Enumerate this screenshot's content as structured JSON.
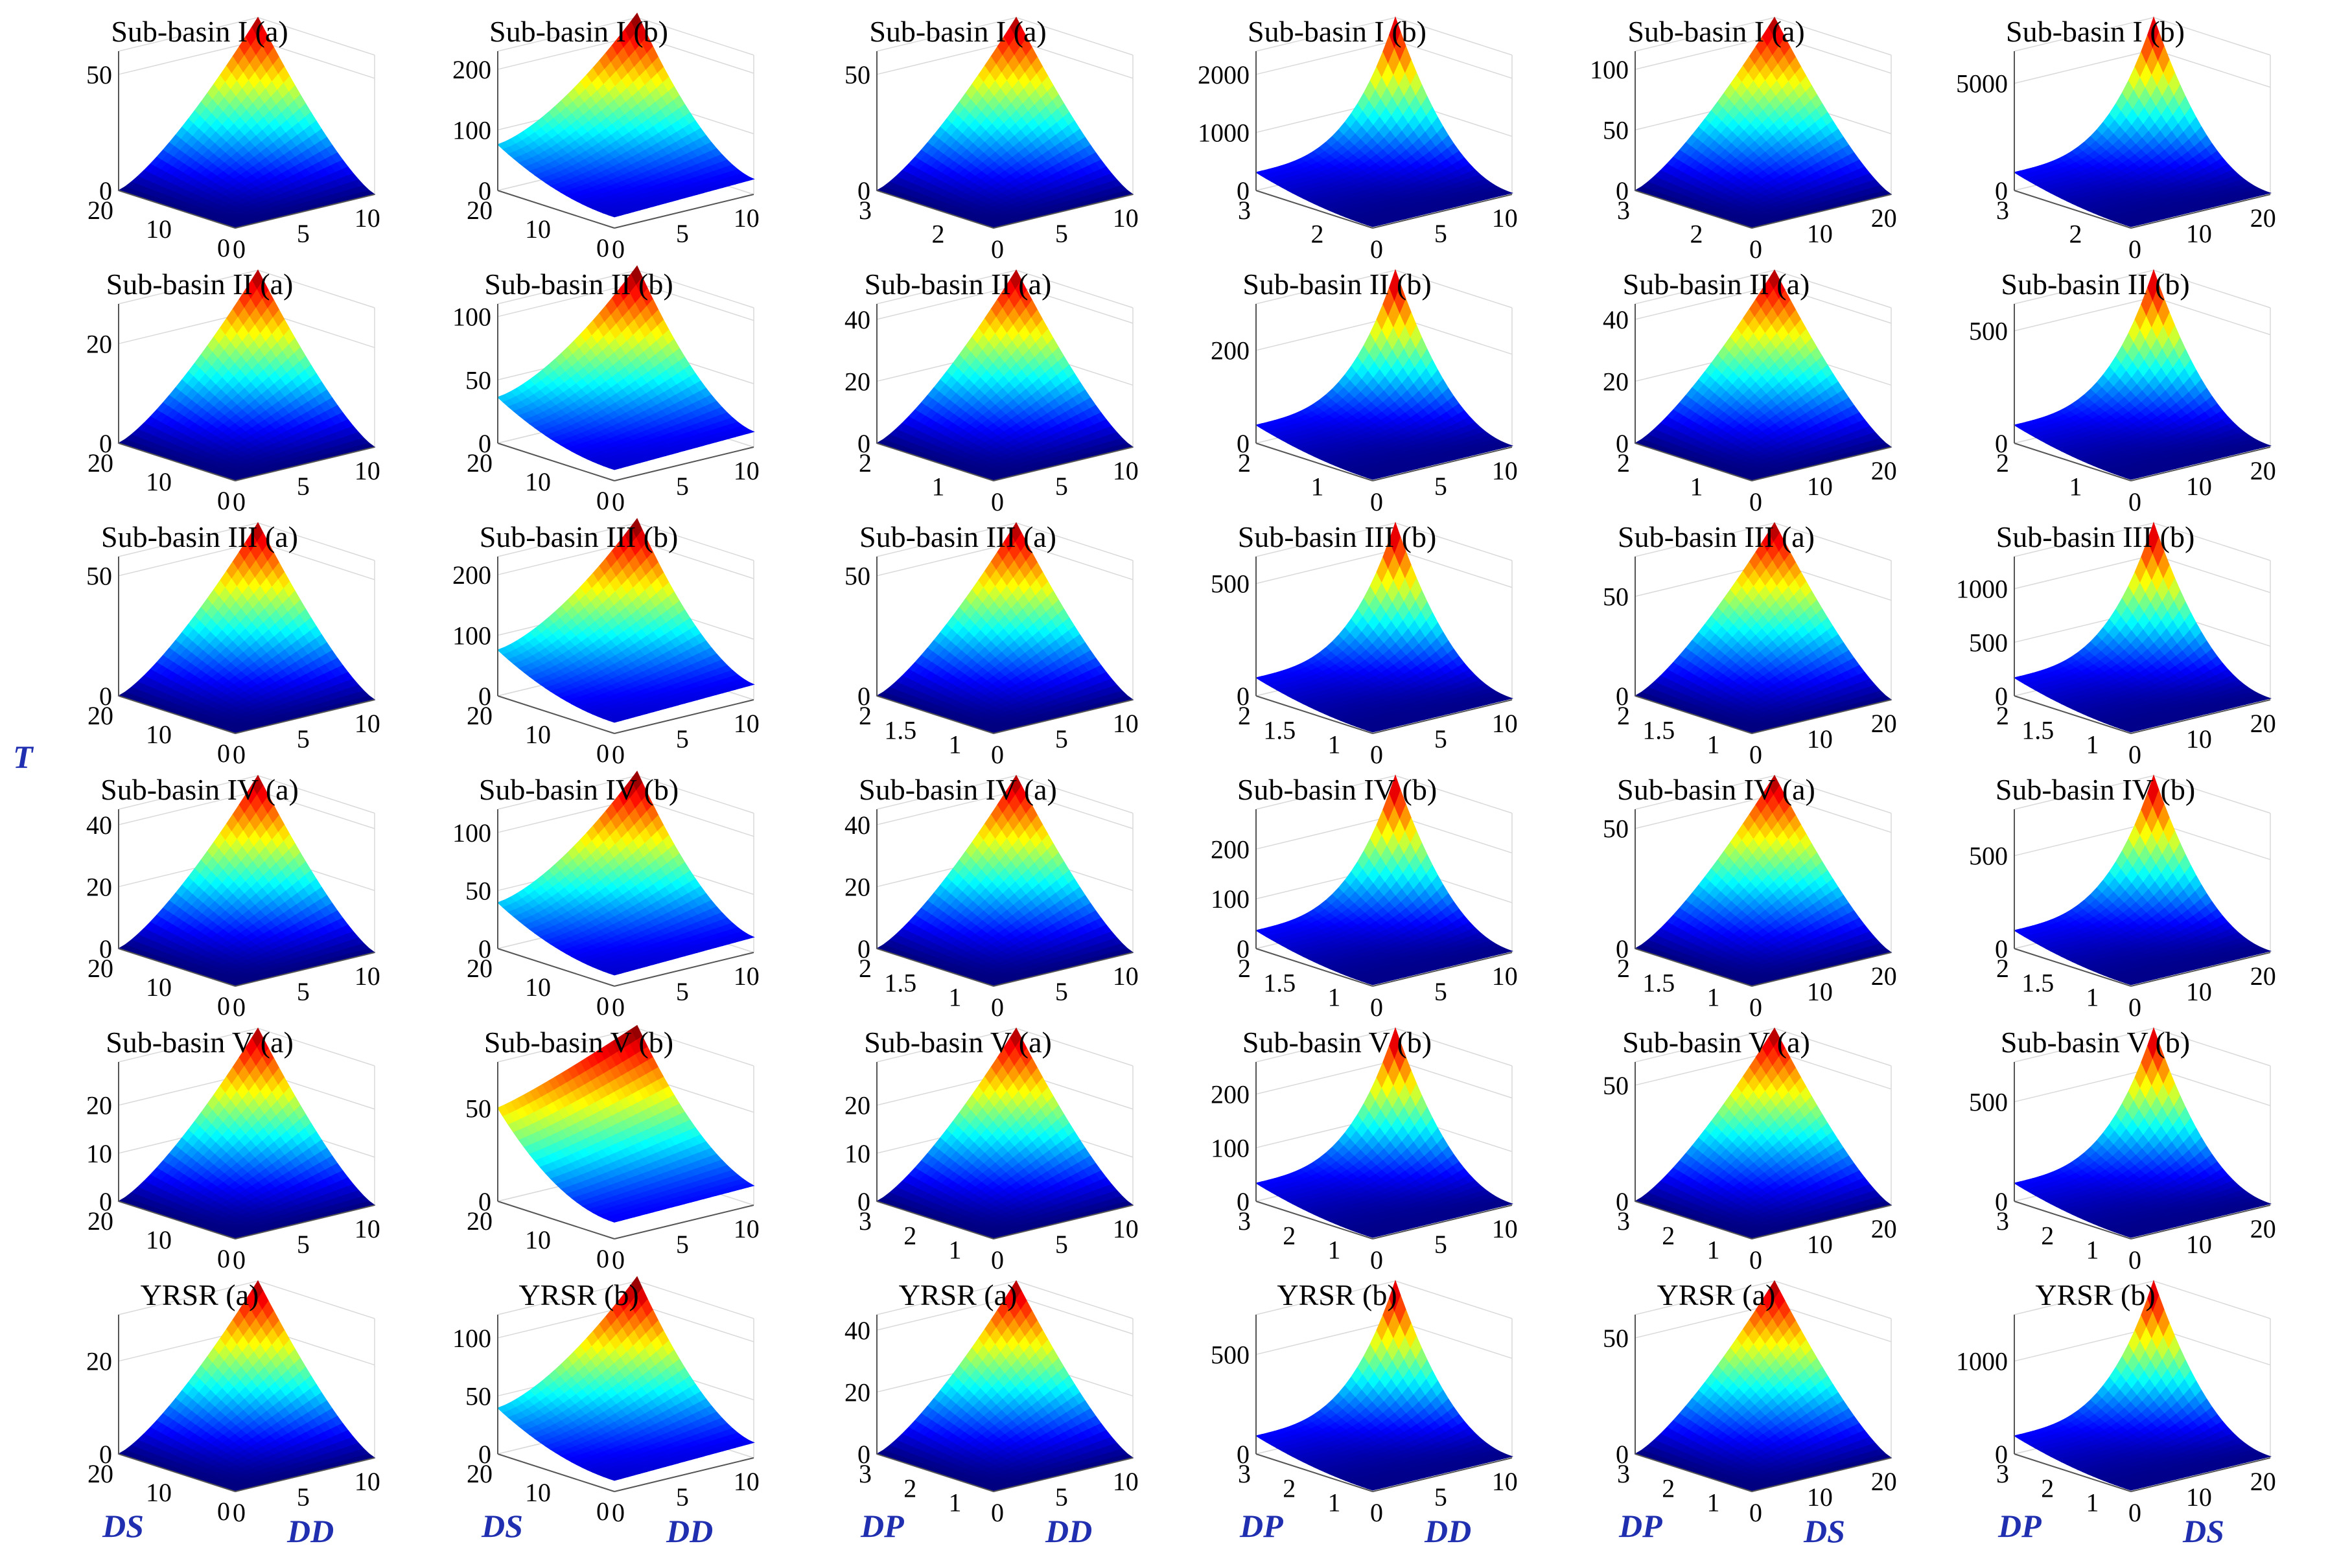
{
  "chart_data": {
    "type": "surface3d",
    "colormap": "jet",
    "global_labels": {
      "z_label": "T"
    },
    "column_labels": [
      {
        "y": "DS",
        "x": "DD"
      },
      {
        "y": "DS",
        "x": "DD"
      },
      {
        "y": "DP",
        "x": "DD"
      },
      {
        "y": "DP",
        "x": "DD"
      },
      {
        "y": "DP",
        "x": "DS"
      },
      {
        "y": "DP",
        "x": "DS"
      }
    ],
    "panels": [
      [
        {
          "title": "Sub-basin I (a)",
          "zticks": [
            0,
            50
          ],
          "zmax": 60,
          "yticks": [
            "20",
            "10",
            "0"
          ],
          "xticks": [
            "0",
            "5",
            "10"
          ],
          "ymax": 20,
          "xmax": 10,
          "shape": "a"
        },
        {
          "title": "Sub-basin I (b)",
          "zticks": [
            0,
            100,
            200
          ],
          "zmax": 230,
          "yticks": [
            "20",
            "10",
            "0"
          ],
          "xticks": [
            "0",
            "5",
            "10"
          ],
          "ymax": 20,
          "xmax": 10,
          "shape": "b"
        },
        {
          "title": "Sub-basin I (a)",
          "zticks": [
            0,
            50
          ],
          "zmax": 60,
          "yticks": [
            "3",
            "2"
          ],
          "xticks": [
            "0",
            "5",
            "10"
          ],
          "ymax": 3,
          "xmax": 10,
          "shape": "a"
        },
        {
          "title": "Sub-basin I (b)",
          "zticks": [
            0,
            1000,
            2000
          ],
          "zmax": 2400,
          "yticks": [
            "3",
            "2"
          ],
          "xticks": [
            "0",
            "5",
            "10"
          ],
          "ymax": 3,
          "xmax": 10,
          "shape": "c"
        },
        {
          "title": "Sub-basin I (a)",
          "zticks": [
            0,
            50,
            100
          ],
          "zmax": 115,
          "yticks": [
            "3",
            "2"
          ],
          "xticks": [
            "0",
            "10",
            "20"
          ],
          "ymax": 3,
          "xmax": 20,
          "shape": "a"
        },
        {
          "title": "Sub-basin I (b)",
          "zticks": [
            0,
            5000
          ],
          "zmax": 6500,
          "yticks": [
            "3",
            "2"
          ],
          "xticks": [
            "0",
            "10",
            "20"
          ],
          "ymax": 3,
          "xmax": 20,
          "shape": "c"
        }
      ],
      [
        {
          "title": "Sub-basin II (a)",
          "zticks": [
            0,
            20
          ],
          "zmax": 28,
          "yticks": [
            "20",
            "10",
            "0"
          ],
          "xticks": [
            "0",
            "5",
            "10"
          ],
          "ymax": 20,
          "xmax": 10,
          "shape": "a"
        },
        {
          "title": "Sub-basin II (b)",
          "zticks": [
            0,
            50,
            100
          ],
          "zmax": 110,
          "yticks": [
            "20",
            "10",
            "0"
          ],
          "xticks": [
            "0",
            "5",
            "10"
          ],
          "ymax": 20,
          "xmax": 10,
          "shape": "b"
        },
        {
          "title": "Sub-basin II (a)",
          "zticks": [
            0,
            20,
            40
          ],
          "zmax": 45,
          "yticks": [
            "2",
            "1"
          ],
          "xticks": [
            "0",
            "5",
            "10"
          ],
          "ymax": 2.5,
          "xmax": 10,
          "shape": "a"
        },
        {
          "title": "Sub-basin II (b)",
          "zticks": [
            0,
            200
          ],
          "zmax": 300,
          "yticks": [
            "2",
            "1"
          ],
          "xticks": [
            "0",
            "5",
            "10"
          ],
          "ymax": 2.5,
          "xmax": 10,
          "shape": "c"
        },
        {
          "title": "Sub-basin II (a)",
          "zticks": [
            0,
            20,
            40
          ],
          "zmax": 45,
          "yticks": [
            "2",
            "1"
          ],
          "xticks": [
            "0",
            "10",
            "20"
          ],
          "ymax": 2.5,
          "xmax": 20,
          "shape": "a"
        },
        {
          "title": "Sub-basin II (b)",
          "zticks": [
            0,
            500
          ],
          "zmax": 620,
          "yticks": [
            "2",
            "1"
          ],
          "xticks": [
            "0",
            "10",
            "20"
          ],
          "ymax": 2.5,
          "xmax": 20,
          "shape": "c"
        }
      ],
      [
        {
          "title": "Sub-basin III (a)",
          "zticks": [
            0,
            50
          ],
          "zmax": 58,
          "yticks": [
            "20",
            "10",
            "0"
          ],
          "xticks": [
            "0",
            "5",
            "10"
          ],
          "ymax": 20,
          "xmax": 10,
          "shape": "a"
        },
        {
          "title": "Sub-basin III (b)",
          "zticks": [
            0,
            100,
            200
          ],
          "zmax": 230,
          "yticks": [
            "20",
            "10",
            "0"
          ],
          "xticks": [
            "0",
            "5",
            "10"
          ],
          "ymax": 20,
          "xmax": 10,
          "shape": "b"
        },
        {
          "title": "Sub-basin III (a)",
          "zticks": [
            0,
            50
          ],
          "zmax": 58,
          "yticks": [
            "2",
            "1.5",
            "1"
          ],
          "xticks": [
            "0",
            "5",
            "10"
          ],
          "ymax": 2.2,
          "xmax": 10,
          "shape": "a"
        },
        {
          "title": "Sub-basin III (b)",
          "zticks": [
            0,
            500
          ],
          "zmax": 620,
          "yticks": [
            "2",
            "1.5",
            "1"
          ],
          "xticks": [
            "0",
            "5",
            "10"
          ],
          "ymax": 2.2,
          "xmax": 10,
          "shape": "c"
        },
        {
          "title": "Sub-basin III (a)",
          "zticks": [
            0,
            50
          ],
          "zmax": 70,
          "yticks": [
            "2",
            "1.5",
            "1"
          ],
          "xticks": [
            "0",
            "10",
            "20"
          ],
          "ymax": 2.2,
          "xmax": 20,
          "shape": "a"
        },
        {
          "title": "Sub-basin III (b)",
          "zticks": [
            0,
            500,
            1000
          ],
          "zmax": 1300,
          "yticks": [
            "2",
            "1.5",
            "1"
          ],
          "xticks": [
            "0",
            "10",
            "20"
          ],
          "ymax": 2.2,
          "xmax": 20,
          "shape": "c"
        }
      ],
      [
        {
          "title": "Sub-basin IV (a)",
          "zticks": [
            0,
            20,
            40
          ],
          "zmax": 45,
          "yticks": [
            "20",
            "10",
            "0"
          ],
          "xticks": [
            "0",
            "5",
            "10"
          ],
          "ymax": 20,
          "xmax": 10,
          "shape": "a"
        },
        {
          "title": "Sub-basin IV (b)",
          "zticks": [
            0,
            50,
            100
          ],
          "zmax": 120,
          "yticks": [
            "20",
            "10",
            "0"
          ],
          "xticks": [
            "0",
            "5",
            "10"
          ],
          "ymax": 20,
          "xmax": 10,
          "shape": "b"
        },
        {
          "title": "Sub-basin IV (a)",
          "zticks": [
            0,
            20,
            40
          ],
          "zmax": 45,
          "yticks": [
            "2",
            "1.5",
            "1"
          ],
          "xticks": [
            "0",
            "5",
            "10"
          ],
          "ymax": 2.2,
          "xmax": 10,
          "shape": "a"
        },
        {
          "title": "Sub-basin IV (b)",
          "zticks": [
            0,
            100,
            200
          ],
          "zmax": 280,
          "yticks": [
            "2",
            "1.5",
            "1"
          ],
          "xticks": [
            "0",
            "5",
            "10"
          ],
          "ymax": 2.2,
          "xmax": 10,
          "shape": "c"
        },
        {
          "title": "Sub-basin IV (a)",
          "zticks": [
            0,
            50
          ],
          "zmax": 58,
          "yticks": [
            "2",
            "1.5",
            "1"
          ],
          "xticks": [
            "0",
            "10",
            "20"
          ],
          "ymax": 2.2,
          "xmax": 20,
          "shape": "a"
        },
        {
          "title": "Sub-basin IV (b)",
          "zticks": [
            0,
            500
          ],
          "zmax": 750,
          "yticks": [
            "2",
            "1.5",
            "1"
          ],
          "xticks": [
            "0",
            "10",
            "20"
          ],
          "ymax": 2.2,
          "xmax": 20,
          "shape": "c"
        }
      ],
      [
        {
          "title": "Sub-basin V (a)",
          "zticks": [
            0,
            10,
            20
          ],
          "zmax": 29,
          "yticks": [
            "20",
            "10",
            "0"
          ],
          "xticks": [
            "0",
            "5",
            "10"
          ],
          "ymax": 20,
          "xmax": 10,
          "shape": "a"
        },
        {
          "title": "Sub-basin V (b)",
          "zticks": [
            0,
            50
          ],
          "zmax": 75,
          "yticks": [
            "20",
            "10",
            "0"
          ],
          "xticks": [
            "0",
            "5",
            "10"
          ],
          "ymax": 20,
          "xmax": 10,
          "shape": "v"
        },
        {
          "title": "Sub-basin V (a)",
          "zticks": [
            0,
            10,
            20
          ],
          "zmax": 29,
          "yticks": [
            "3",
            "2",
            "1"
          ],
          "xticks": [
            "0",
            "5",
            "10"
          ],
          "ymax": 3,
          "xmax": 10,
          "shape": "a"
        },
        {
          "title": "Sub-basin V (b)",
          "zticks": [
            0,
            100,
            200
          ],
          "zmax": 260,
          "yticks": [
            "3",
            "2",
            "1"
          ],
          "xticks": [
            "0",
            "5",
            "10"
          ],
          "ymax": 3,
          "xmax": 10,
          "shape": "c"
        },
        {
          "title": "Sub-basin V (a)",
          "zticks": [
            0,
            50
          ],
          "zmax": 60,
          "yticks": [
            "3",
            "2",
            "1"
          ],
          "xticks": [
            "0",
            "10",
            "20"
          ],
          "ymax": 3,
          "xmax": 20,
          "shape": "a"
        },
        {
          "title": "Sub-basin V (b)",
          "zticks": [
            0,
            500
          ],
          "zmax": 700,
          "yticks": [
            "3",
            "2",
            "1"
          ],
          "xticks": [
            "0",
            "10",
            "20"
          ],
          "ymax": 3,
          "xmax": 20,
          "shape": "c"
        }
      ],
      [
        {
          "title": "YRSR (a)",
          "zticks": [
            0,
            20
          ],
          "zmax": 30,
          "yticks": [
            "20",
            "10",
            "0"
          ],
          "xticks": [
            "0",
            "5",
            "10"
          ],
          "ymax": 20,
          "xmax": 10,
          "shape": "a"
        },
        {
          "title": "YRSR (b)",
          "zticks": [
            0,
            50,
            100
          ],
          "zmax": 120,
          "yticks": [
            "20",
            "10",
            "0"
          ],
          "xticks": [
            "0",
            "5",
            "10"
          ],
          "ymax": 20,
          "xmax": 10,
          "shape": "b"
        },
        {
          "title": "YRSR (a)",
          "zticks": [
            0,
            20,
            40
          ],
          "zmax": 45,
          "yticks": [
            "3",
            "2",
            "1"
          ],
          "xticks": [
            "0",
            "5",
            "10"
          ],
          "ymax": 3,
          "xmax": 10,
          "shape": "a"
        },
        {
          "title": "YRSR (b)",
          "zticks": [
            0,
            500
          ],
          "zmax": 700,
          "yticks": [
            "3",
            "2",
            "1"
          ],
          "xticks": [
            "0",
            "5",
            "10"
          ],
          "ymax": 3,
          "xmax": 10,
          "shape": "c"
        },
        {
          "title": "YRSR (a)",
          "zticks": [
            0,
            50
          ],
          "zmax": 60,
          "yticks": [
            "3",
            "2",
            "1"
          ],
          "xticks": [
            "0",
            "10",
            "20"
          ],
          "ymax": 3,
          "xmax": 20,
          "shape": "a"
        },
        {
          "title": "YRSR (b)",
          "zticks": [
            0,
            1000
          ],
          "zmax": 1500,
          "yticks": [
            "3",
            "2",
            "1"
          ],
          "xticks": [
            "0",
            "10",
            "20"
          ],
          "ymax": 3,
          "xmax": 20,
          "shape": "c"
        }
      ]
    ]
  }
}
